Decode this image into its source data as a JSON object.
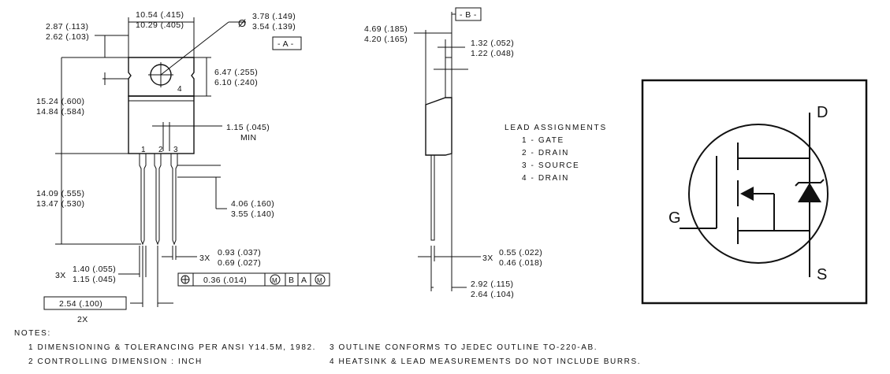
{
  "front_view": {
    "width": "10.54 (.415)\n10.29 (.405)",
    "tab_thickness_top": "2.87 (.113)",
    "tab_thickness_bot": "2.62 (.103)",
    "hole_dia_top": "3.78 (.149)",
    "hole_dia_bot": "3.54 (.139)",
    "datum_a": "- A -",
    "tab_height_top": "6.47 (.255)",
    "tab_height_bot": "6.10 (.240)",
    "body_height_top": "15.24 (.600)",
    "body_height_bot": "14.84 (.584)",
    "lead_len_top": "14.09 (.555)",
    "lead_len_bot": "13.47 (.530)",
    "min_lead_top": "1.15 (.045)",
    "min_lead_bot": "MIN",
    "lead_step_top": "4.06 (.160)",
    "lead_step_bot": "3.55 (.140)",
    "lead_w_prefix": "3X",
    "lead_w_top": "0.93 (.037)",
    "lead_w_bot": "0.69 (.027)",
    "shoulder_prefix": "3X",
    "shoulder_top": "1.40 (.055)",
    "shoulder_bot": "1.15 (.045)",
    "pitch": "2.54 (.100)",
    "pitch_count": "2X",
    "pin_1": "1",
    "pin_2": "2",
    "pin_3": "3",
    "pin_4": "4",
    "fcf_value": "0.36 (.014)",
    "fcf_m1": "M",
    "fcf_b": "B",
    "fcf_a": "A",
    "fcf_m2": "M",
    "phi": "Ø"
  },
  "side_view": {
    "depth_top": "4.69 (.185)",
    "depth_bot": "4.20 (.165)",
    "datum_b": "- B -",
    "tab_t_top": "1.32 (.052)",
    "tab_t_bot": "1.22 (.048)",
    "lead_t_prefix": "3X",
    "lead_t_top": "0.55 (.022)",
    "lead_t_bot": "0.46 (.018)",
    "offset_top": "2.92 (.115)",
    "offset_bot": "2.64 (.104)"
  },
  "lead_assignments": {
    "title": "LEAD ASSIGNMENTS",
    "items": [
      "1 - GATE",
      "2 - DRAIN",
      "3 - SOURCE",
      "4 - DRAIN"
    ]
  },
  "symbol": {
    "drain": "D",
    "gate": "G",
    "source": "S"
  },
  "notes": {
    "title": "NOTES:",
    "items": [
      "1  DIMENSIONING & TOLERANCING PER ANSI Y14.5M, 1982.",
      "2  CONTROLLING DIMENSION : INCH",
      "3  OUTLINE CONFORMS TO JEDEC OUTLINE TO-220-AB.",
      "4  HEATSINK & LEAD MEASUREMENTS DO NOT INCLUDE BURRS."
    ]
  }
}
